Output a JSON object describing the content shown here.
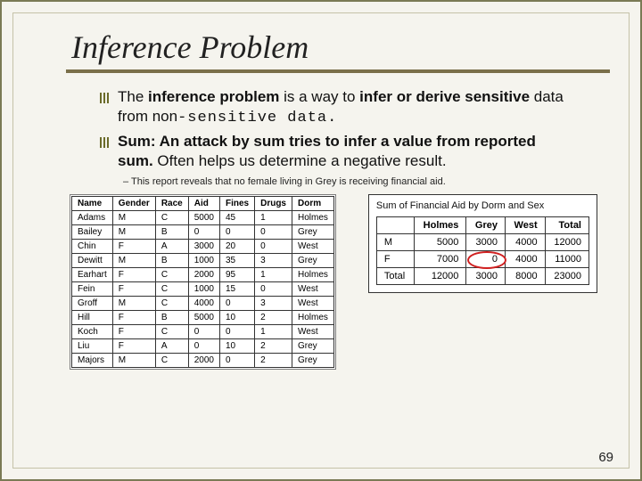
{
  "title": "Inference Problem",
  "bullets": [
    {
      "prefix": "The ",
      "bold1": "inference problem",
      "mid": " is a way to ",
      "bold2": "infer or derive sensitive",
      "rest": " data from non",
      "mono": "-sensitive data."
    },
    {
      "bold1": "Sum: An attack by sum tries to infer a value from reported sum.",
      "rest": " Often helps us determine a negative result."
    }
  ],
  "sub_note": "This report reveals that no female living in Grey is receiving financial aid.",
  "left_table": {
    "columns": [
      "Name",
      "Gender",
      "Race",
      "Aid",
      "Fines",
      "Drugs",
      "Dorm"
    ],
    "rows": [
      [
        "Adams",
        "M",
        "C",
        "5000",
        "45",
        "1",
        "Holmes"
      ],
      [
        "Bailey",
        "M",
        "B",
        "0",
        "0",
        "0",
        "Grey"
      ],
      [
        "Chin",
        "F",
        "A",
        "3000",
        "20",
        "0",
        "West"
      ],
      [
        "Dewitt",
        "M",
        "B",
        "1000",
        "35",
        "3",
        "Grey"
      ],
      [
        "Earhart",
        "F",
        "C",
        "2000",
        "95",
        "1",
        "Holmes"
      ],
      [
        "Fein",
        "F",
        "C",
        "1000",
        "15",
        "0",
        "West"
      ],
      [
        "Groff",
        "M",
        "C",
        "4000",
        "0",
        "3",
        "West"
      ],
      [
        "Hill",
        "F",
        "B",
        "5000",
        "10",
        "2",
        "Holmes"
      ],
      [
        "Koch",
        "F",
        "C",
        "0",
        "0",
        "1",
        "West"
      ],
      [
        "Liu",
        "F",
        "A",
        "0",
        "10",
        "2",
        "Grey"
      ],
      [
        "Majors",
        "M",
        "C",
        "2000",
        "0",
        "2",
        "Grey"
      ]
    ]
  },
  "right_table": {
    "title": "Sum of Financial Aid by Dorm and Sex",
    "columns": [
      "",
      "Holmes",
      "Grey",
      "West",
      "Total"
    ],
    "rows": [
      [
        "M",
        "5000",
        "3000",
        "4000",
        "12000"
      ],
      [
        "F",
        "7000",
        "0",
        "4000",
        "11000"
      ],
      [
        "Total",
        "12000",
        "3000",
        "8000",
        "23000"
      ]
    ],
    "circle": {
      "row": 1,
      "col": 2
    },
    "circle_color": "#d02020"
  },
  "page_number": "69",
  "styling": {
    "background_color": "#f5f4ee",
    "title_font": "Times New Roman Italic",
    "title_fontsize": 36,
    "underline_color": "#7a6f4a",
    "table_border_color": "#333333",
    "bullet_icon_color": "#6b6b2a"
  }
}
